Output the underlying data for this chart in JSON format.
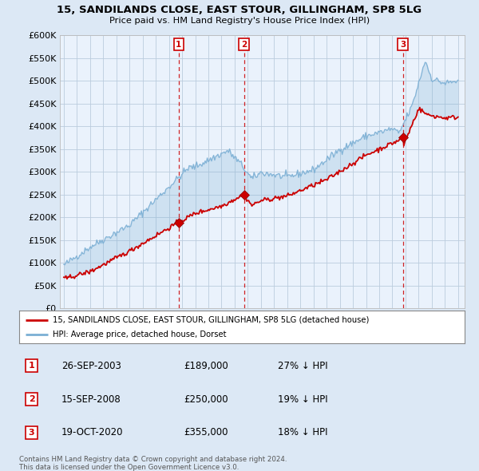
{
  "title1": "15, SANDILANDS CLOSE, EAST STOUR, GILLINGHAM, SP8 5LG",
  "title2": "Price paid vs. HM Land Registry's House Price Index (HPI)",
  "legend_label_red": "15, SANDILANDS CLOSE, EAST STOUR, GILLINGHAM, SP8 5LG (detached house)",
  "legend_label_blue": "HPI: Average price, detached house, Dorset",
  "transactions": [
    {
      "num": 1,
      "date": "26-SEP-2003",
      "price": 189000,
      "pct": "27% ↓ HPI",
      "x": 2003.74
    },
    {
      "num": 2,
      "date": "15-SEP-2008",
      "price": 250000,
      "pct": "19% ↓ HPI",
      "x": 2008.71
    },
    {
      "num": 3,
      "date": "19-OCT-2020",
      "price": 355000,
      "pct": "18% ↓ HPI",
      "x": 2020.8
    }
  ],
  "footer1": "Contains HM Land Registry data © Crown copyright and database right 2024.",
  "footer2": "This data is licensed under the Open Government Licence v3.0.",
  "ylim_max": 600000,
  "xlim_start": 1994.7,
  "xlim_end": 2025.5,
  "background_color": "#dce8f5",
  "plot_background": "#dce8f5",
  "plot_inner_bg": "#ffffff",
  "red_color": "#cc0000",
  "blue_color": "#7bafd4",
  "grid_color": "#bbccdd"
}
